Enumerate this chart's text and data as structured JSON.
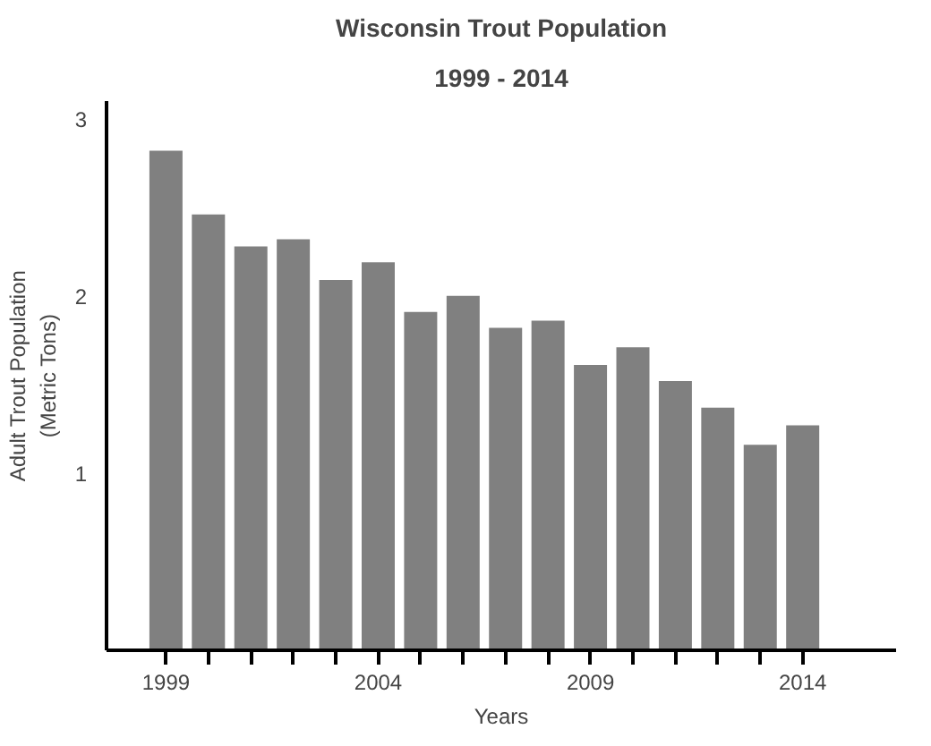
{
  "chart_data": {
    "type": "bar",
    "title": "Wisconsin Trout Population",
    "subtitle": "1999 - 2014",
    "xlabel": "Years",
    "ylabel": "Adult Trout Population\n(Metric Tons)",
    "x": [
      1999,
      2000,
      2001,
      2002,
      2003,
      2004,
      2005,
      2006,
      2007,
      2008,
      2009,
      2010,
      2011,
      2012,
      2013,
      2014
    ],
    "values": [
      2.82,
      2.46,
      2.28,
      2.32,
      2.09,
      2.19,
      1.91,
      2.0,
      1.82,
      1.86,
      1.61,
      1.71,
      1.52,
      1.37,
      1.16,
      1.27
    ],
    "color": "#808080",
    "xlim": [
      1997.6,
      2016.2
    ],
    "xticks": [
      1999,
      {
        "value": 2000,
        "label": null
      },
      {
        "value": 2001,
        "label": null
      },
      {
        "value": 2002,
        "label": null
      },
      {
        "value": 2003,
        "label": null
      },
      2004,
      {
        "value": 2005,
        "label": null
      },
      {
        "value": 2006,
        "label": null
      },
      {
        "value": 2007,
        "label": null
      },
      {
        "value": 2008,
        "label": null
      },
      2009,
      {
        "value": 2010,
        "label": null
      },
      {
        "value": 2011,
        "label": null
      },
      {
        "value": 2012,
        "label": null
      },
      {
        "value": 2013,
        "label": null
      },
      2014
    ],
    "ylim": [
      0,
      3.1
    ],
    "yticks": [
      1,
      2,
      3
    ],
    "grid": false
  }
}
